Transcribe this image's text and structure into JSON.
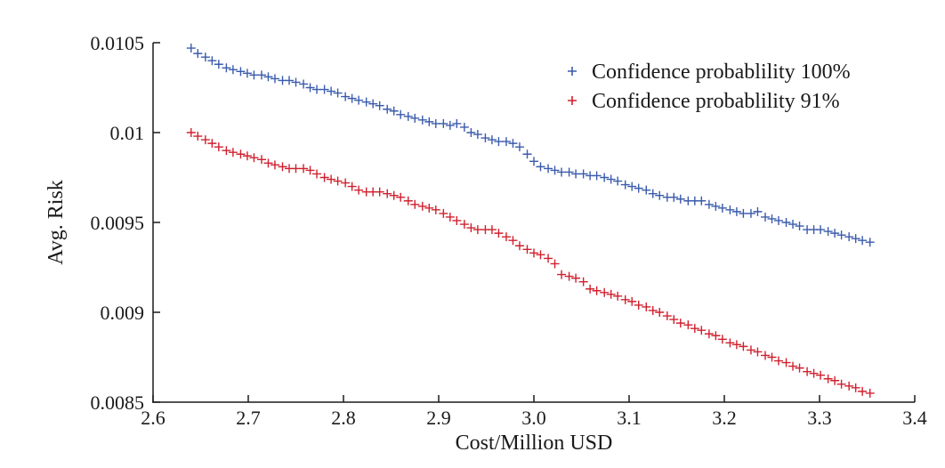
{
  "chart_data": {
    "type": "scatter",
    "title": "",
    "xlabel": "Cost/Million USD",
    "ylabel": "Avg. Risk",
    "xlim": [
      2.6,
      3.4
    ],
    "ylim": [
      0.0085,
      0.0105
    ],
    "x_ticks": [
      2.6,
      2.7,
      2.8,
      2.9,
      3.0,
      3.1,
      3.2,
      3.3,
      3.4
    ],
    "x_tick_labels": [
      "2.6",
      "2.7",
      "2.8",
      "2.9",
      "3.0",
      "3.1",
      "3.2",
      "3.3",
      "3.4"
    ],
    "y_ticks": [
      0.0085,
      0.009,
      0.0095,
      0.01,
      0.0105
    ],
    "y_tick_labels": [
      "0.0085",
      "0.009",
      "0.0095",
      "0.01",
      "0.0105"
    ],
    "grid": false,
    "legend_position": "top-right",
    "marker": "+",
    "series": [
      {
        "name": "Confidence probablility 100%",
        "color": "#3a5bab",
        "x": [
          2.64,
          2.647,
          2.655,
          2.662,
          2.669,
          2.677,
          2.684,
          2.692,
          2.699,
          2.706,
          2.714,
          2.721,
          2.728,
          2.736,
          2.743,
          2.75,
          2.758,
          2.765,
          2.772,
          2.78,
          2.787,
          2.794,
          2.802,
          2.809,
          2.816,
          2.824,
          2.831,
          2.838,
          2.846,
          2.853,
          2.86,
          2.868,
          2.875,
          2.883,
          2.89,
          2.897,
          2.905,
          2.912,
          2.919,
          2.927,
          2.934,
          2.941,
          2.949,
          2.956,
          2.963,
          2.971,
          2.978,
          2.985,
          2.993,
          3.0,
          3.007,
          3.015,
          3.022,
          3.029,
          3.037,
          3.044,
          3.052,
          3.059,
          3.066,
          3.074,
          3.081,
          3.088,
          3.096,
          3.103,
          3.11,
          3.118,
          3.125,
          3.132,
          3.14,
          3.147,
          3.154,
          3.162,
          3.169,
          3.176,
          3.184,
          3.191,
          3.198,
          3.206,
          3.213,
          3.22,
          3.228,
          3.235,
          3.243,
          3.25,
          3.257,
          3.265,
          3.272,
          3.279,
          3.287,
          3.294,
          3.301,
          3.309,
          3.316,
          3.323,
          3.331,
          3.338,
          3.345,
          3.353
        ],
        "y": [
          0.01047,
          0.01044,
          0.01042,
          0.0104,
          0.01038,
          0.01036,
          0.01035,
          0.01034,
          0.01033,
          0.01032,
          0.01032,
          0.01031,
          0.0103,
          0.01029,
          0.01029,
          0.01028,
          0.01027,
          0.01025,
          0.01024,
          0.01024,
          0.01023,
          0.01022,
          0.0102,
          0.01019,
          0.01018,
          0.01017,
          0.01016,
          0.01015,
          0.01013,
          0.01012,
          0.0101,
          0.01009,
          0.01008,
          0.01007,
          0.01006,
          0.01005,
          0.01005,
          0.01004,
          0.01005,
          0.01003,
          0.01,
          0.00999,
          0.00997,
          0.00996,
          0.00995,
          0.00995,
          0.00994,
          0.00992,
          0.00988,
          0.00984,
          0.00981,
          0.0098,
          0.00979,
          0.00978,
          0.00978,
          0.00977,
          0.00977,
          0.00976,
          0.00976,
          0.00975,
          0.00974,
          0.00973,
          0.00971,
          0.0097,
          0.00969,
          0.00968,
          0.00966,
          0.00965,
          0.00964,
          0.00964,
          0.00963,
          0.00962,
          0.00962,
          0.00962,
          0.0096,
          0.00959,
          0.00958,
          0.00957,
          0.00956,
          0.00955,
          0.00955,
          0.00956,
          0.00953,
          0.00952,
          0.00951,
          0.0095,
          0.00949,
          0.00948,
          0.00946,
          0.00946,
          0.00946,
          0.00945,
          0.00944,
          0.00943,
          0.00942,
          0.00941,
          0.0094,
          0.00939
        ]
      },
      {
        "name": "Confidence probablility 91%",
        "color": "#d0202e",
        "x": [
          2.64,
          2.647,
          2.655,
          2.662,
          2.669,
          2.677,
          2.684,
          2.692,
          2.699,
          2.706,
          2.714,
          2.721,
          2.728,
          2.736,
          2.743,
          2.75,
          2.758,
          2.765,
          2.772,
          2.78,
          2.787,
          2.794,
          2.802,
          2.809,
          2.816,
          2.824,
          2.831,
          2.838,
          2.846,
          2.853,
          2.86,
          2.868,
          2.875,
          2.883,
          2.89,
          2.897,
          2.905,
          2.912,
          2.919,
          2.927,
          2.934,
          2.941,
          2.949,
          2.956,
          2.963,
          2.971,
          2.978,
          2.985,
          2.993,
          3.0,
          3.007,
          3.015,
          3.022,
          3.029,
          3.037,
          3.044,
          3.052,
          3.059,
          3.066,
          3.074,
          3.081,
          3.088,
          3.096,
          3.103,
          3.11,
          3.118,
          3.125,
          3.132,
          3.14,
          3.147,
          3.154,
          3.162,
          3.169,
          3.176,
          3.184,
          3.191,
          3.198,
          3.206,
          3.213,
          3.22,
          3.228,
          3.235,
          3.243,
          3.25,
          3.257,
          3.265,
          3.272,
          3.279,
          3.287,
          3.294,
          3.301,
          3.309,
          3.316,
          3.323,
          3.331,
          3.338,
          3.345,
          3.353
        ],
        "y": [
          0.01,
          0.00998,
          0.00996,
          0.00994,
          0.00992,
          0.0099,
          0.00989,
          0.00988,
          0.00987,
          0.00986,
          0.00985,
          0.00983,
          0.00982,
          0.00981,
          0.0098,
          0.0098,
          0.0098,
          0.00979,
          0.00977,
          0.00975,
          0.00974,
          0.00973,
          0.00972,
          0.0097,
          0.00968,
          0.00967,
          0.00967,
          0.00967,
          0.00966,
          0.00965,
          0.00964,
          0.00962,
          0.0096,
          0.00959,
          0.00958,
          0.00957,
          0.00955,
          0.00953,
          0.00951,
          0.00949,
          0.00947,
          0.00946,
          0.00946,
          0.00946,
          0.00944,
          0.00942,
          0.0094,
          0.00937,
          0.00935,
          0.00933,
          0.00932,
          0.0093,
          0.00927,
          0.00921,
          0.0092,
          0.00919,
          0.00917,
          0.00913,
          0.00912,
          0.00911,
          0.0091,
          0.00909,
          0.00907,
          0.00906,
          0.00904,
          0.00903,
          0.00901,
          0.009,
          0.00898,
          0.00896,
          0.00894,
          0.00893,
          0.00891,
          0.0089,
          0.00888,
          0.00887,
          0.00885,
          0.00883,
          0.00882,
          0.00881,
          0.00879,
          0.00878,
          0.00876,
          0.00875,
          0.00873,
          0.00872,
          0.0087,
          0.00869,
          0.00867,
          0.00866,
          0.00865,
          0.00863,
          0.00862,
          0.0086,
          0.00859,
          0.00858,
          0.00856,
          0.00855
        ]
      }
    ]
  }
}
